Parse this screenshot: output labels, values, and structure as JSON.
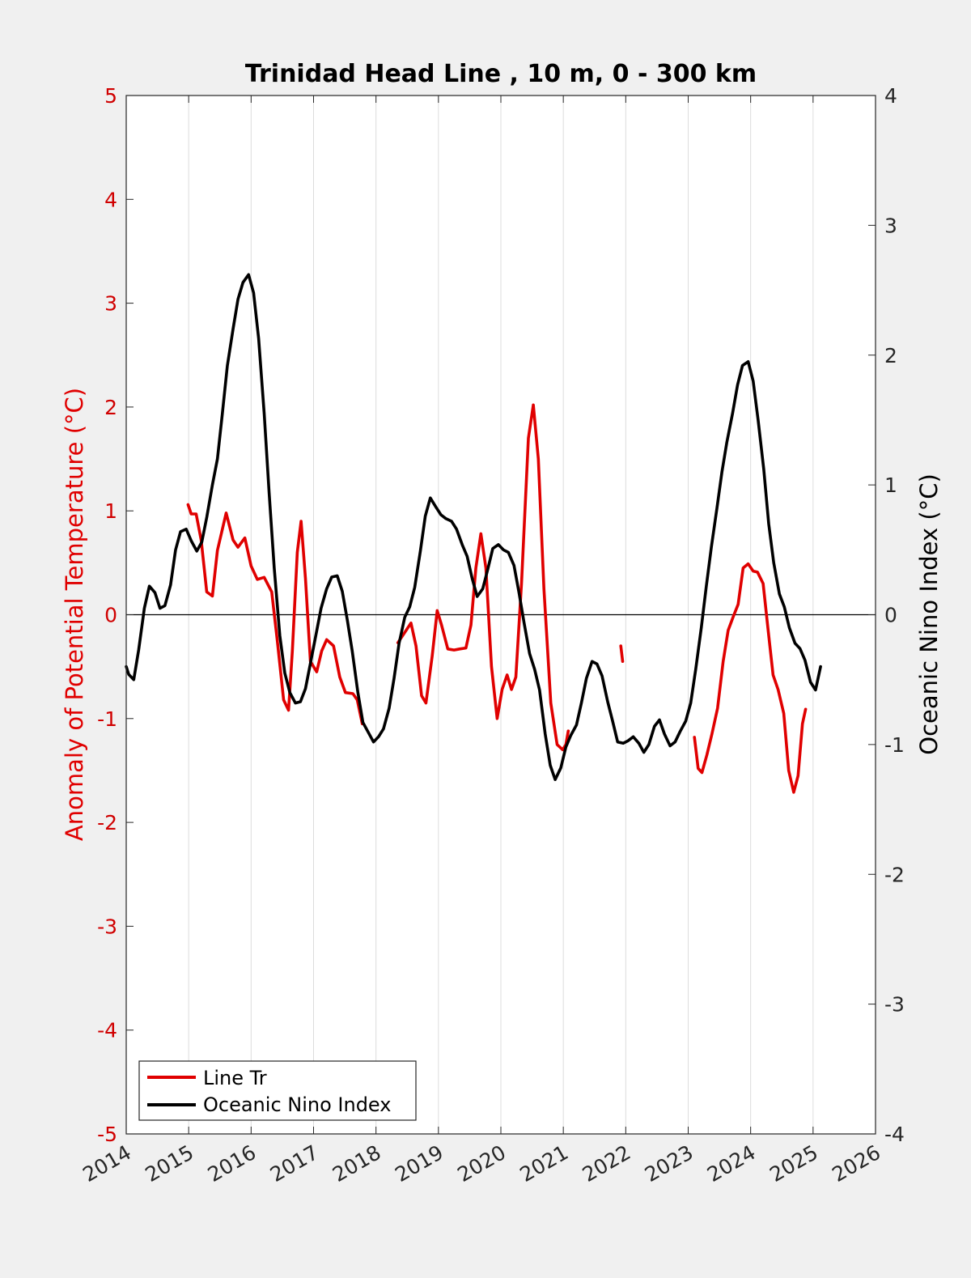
{
  "chart_data": {
    "type": "line",
    "title": "Trinidad Head Line , 10 m, 0 - 300 km",
    "ylabel_left": "Anomaly of Potential Temperature (°C)",
    "ylabel_right": "Oceanic Nino Index (°C)",
    "xlim": [
      2014,
      2026
    ],
    "ylim_left": [
      -5,
      5
    ],
    "ylim_right": [
      -4,
      4
    ],
    "x_ticks": [
      "2014",
      "2015",
      "2016",
      "2017",
      "2018",
      "2019",
      "2020",
      "2021",
      "2022",
      "2023",
      "2024",
      "2025",
      "2026"
    ],
    "y_ticks_left": [
      "5",
      "4",
      "3",
      "2",
      "1",
      "0",
      "-1",
      "-2",
      "-3",
      "-4",
      "-5"
    ],
    "y_ticks_right": [
      "4",
      "3",
      "2",
      "1",
      "0",
      "-1",
      "-2",
      "-3",
      "-4"
    ],
    "grid": "vertical lines at years",
    "legend_position": "bottom-left",
    "colors": {
      "line_tr": "#e00000",
      "oni": "#000000",
      "left_axis_text": "#d00000"
    },
    "series": [
      {
        "name": "Line Tr",
        "axis": "left",
        "color": "#e00000",
        "segments": [
          [
            [
              2014.99,
              1.06
            ],
            [
              2015.04,
              0.97
            ],
            [
              2015.12,
              0.97
            ],
            [
              2015.2,
              0.72
            ],
            [
              2015.29,
              0.22
            ],
            [
              2015.38,
              0.18
            ],
            [
              2015.46,
              0.62
            ],
            [
              2015.6,
              0.98
            ],
            [
              2015.71,
              0.72
            ],
            [
              2015.79,
              0.65
            ],
            [
              2015.9,
              0.74
            ],
            [
              2016.0,
              0.47
            ],
            [
              2016.1,
              0.34
            ],
            [
              2016.21,
              0.36
            ],
            [
              2016.33,
              0.22
            ],
            [
              2016.42,
              -0.25
            ],
            [
              2016.52,
              -0.82
            ],
            [
              2016.6,
              -0.92
            ],
            [
              2016.66,
              -0.35
            ],
            [
              2016.74,
              0.6
            ],
            [
              2016.8,
              0.9
            ],
            [
              2016.87,
              0.35
            ],
            [
              2016.95,
              -0.45
            ],
            [
              2017.05,
              -0.55
            ],
            [
              2017.13,
              -0.35
            ],
            [
              2017.21,
              -0.24
            ],
            [
              2017.32,
              -0.3
            ],
            [
              2017.42,
              -0.6
            ],
            [
              2017.51,
              -0.75
            ],
            [
              2017.63,
              -0.76
            ],
            [
              2017.7,
              -0.82
            ],
            [
              2017.78,
              -1.05
            ]
          ],
          [
            [
              2018.35,
              -0.27
            ],
            [
              2018.45,
              -0.18
            ],
            [
              2018.56,
              -0.08
            ],
            [
              2018.64,
              -0.3
            ],
            [
              2018.73,
              -0.78
            ],
            [
              2018.8,
              -0.85
            ],
            [
              2018.9,
              -0.4
            ],
            [
              2018.98,
              0.04
            ],
            [
              2019.05,
              -0.1
            ],
            [
              2019.15,
              -0.33
            ],
            [
              2019.25,
              -0.34
            ],
            [
              2019.34,
              -0.33
            ],
            [
              2019.44,
              -0.32
            ],
            [
              2019.52,
              -0.1
            ],
            [
              2019.6,
              0.45
            ],
            [
              2019.68,
              0.78
            ],
            [
              2019.76,
              0.45
            ],
            [
              2019.85,
              -0.5
            ],
            [
              2019.94,
              -1.0
            ],
            [
              2020.02,
              -0.72
            ],
            [
              2020.1,
              -0.58
            ],
            [
              2020.17,
              -0.72
            ],
            [
              2020.24,
              -0.6
            ],
            [
              2020.33,
              0.3
            ],
            [
              2020.44,
              1.7
            ],
            [
              2020.52,
              2.02
            ],
            [
              2020.6,
              1.5
            ],
            [
              2020.69,
              0.25
            ],
            [
              2020.8,
              -0.85
            ],
            [
              2020.9,
              -1.25
            ],
            [
              2020.99,
              -1.3
            ],
            [
              2021.04,
              -1.25
            ],
            [
              2021.08,
              -1.12
            ]
          ],
          [
            [
              2021.92,
              -0.3
            ],
            [
              2021.95,
              -0.45
            ]
          ],
          [
            [
              2023.1,
              -1.18
            ],
            [
              2023.16,
              -1.48
            ],
            [
              2023.22,
              -1.52
            ],
            [
              2023.3,
              -1.35
            ],
            [
              2023.38,
              -1.15
            ],
            [
              2023.47,
              -0.9
            ],
            [
              2023.56,
              -0.45
            ],
            [
              2023.64,
              -0.15
            ],
            [
              2023.72,
              -0.02
            ],
            [
              2023.8,
              0.1
            ],
            [
              2023.88,
              0.45
            ],
            [
              2023.96,
              0.49
            ],
            [
              2024.04,
              0.42
            ],
            [
              2024.11,
              0.41
            ],
            [
              2024.2,
              0.3
            ],
            [
              2024.28,
              -0.15
            ],
            [
              2024.36,
              -0.58
            ],
            [
              2024.44,
              -0.72
            ],
            [
              2024.53,
              -0.95
            ],
            [
              2024.61,
              -1.5
            ],
            [
              2024.69,
              -1.71
            ],
            [
              2024.76,
              -1.55
            ],
            [
              2024.83,
              -1.05
            ],
            [
              2024.88,
              -0.91
            ]
          ]
        ]
      },
      {
        "name": "Oceanic Nino Index",
        "axis": "right",
        "color": "#000000",
        "segments": [
          [
            [
              2014.0,
              -0.4
            ],
            [
              2014.04,
              -0.46
            ],
            [
              2014.12,
              -0.5
            ],
            [
              2014.2,
              -0.27
            ],
            [
              2014.29,
              0.05
            ],
            [
              2014.37,
              0.22
            ],
            [
              2014.46,
              0.17
            ],
            [
              2014.54,
              0.05
            ],
            [
              2014.62,
              0.07
            ],
            [
              2014.71,
              0.23
            ],
            [
              2014.79,
              0.5
            ],
            [
              2014.87,
              0.64
            ],
            [
              2014.96,
              0.66
            ],
            [
              2015.04,
              0.57
            ],
            [
              2015.13,
              0.49
            ],
            [
              2015.21,
              0.56
            ],
            [
              2015.29,
              0.75
            ],
            [
              2015.38,
              1.0
            ],
            [
              2015.46,
              1.2
            ],
            [
              2015.54,
              1.55
            ],
            [
              2015.62,
              1.92
            ],
            [
              2015.71,
              2.2
            ],
            [
              2015.79,
              2.43
            ],
            [
              2015.87,
              2.56
            ],
            [
              2015.96,
              2.62
            ],
            [
              2016.04,
              2.48
            ],
            [
              2016.12,
              2.13
            ],
            [
              2016.21,
              1.55
            ],
            [
              2016.29,
              0.93
            ],
            [
              2016.37,
              0.36
            ],
            [
              2016.46,
              -0.16
            ],
            [
              2016.54,
              -0.45
            ],
            [
              2016.62,
              -0.6
            ],
            [
              2016.71,
              -0.68
            ],
            [
              2016.79,
              -0.67
            ],
            [
              2016.87,
              -0.57
            ],
            [
              2016.96,
              -0.35
            ],
            [
              2017.04,
              -0.15
            ],
            [
              2017.12,
              0.05
            ],
            [
              2017.21,
              0.2
            ],
            [
              2017.29,
              0.29
            ],
            [
              2017.38,
              0.3
            ],
            [
              2017.46,
              0.18
            ],
            [
              2017.54,
              -0.04
            ],
            [
              2017.62,
              -0.28
            ],
            [
              2017.71,
              -0.6
            ],
            [
              2017.79,
              -0.83
            ],
            [
              2017.87,
              -0.9
            ],
            [
              2017.96,
              -0.98
            ],
            [
              2018.04,
              -0.94
            ],
            [
              2018.12,
              -0.88
            ],
            [
              2018.21,
              -0.72
            ],
            [
              2018.29,
              -0.49
            ],
            [
              2018.37,
              -0.22
            ],
            [
              2018.46,
              -0.02
            ],
            [
              2018.54,
              0.06
            ],
            [
              2018.62,
              0.21
            ],
            [
              2018.71,
              0.49
            ],
            [
              2018.79,
              0.76
            ],
            [
              2018.87,
              0.9
            ],
            [
              2018.96,
              0.83
            ],
            [
              2019.04,
              0.77
            ],
            [
              2019.12,
              0.74
            ],
            [
              2019.21,
              0.72
            ],
            [
              2019.29,
              0.66
            ],
            [
              2019.38,
              0.54
            ],
            [
              2019.46,
              0.45
            ],
            [
              2019.54,
              0.28
            ],
            [
              2019.62,
              0.14
            ],
            [
              2019.71,
              0.2
            ],
            [
              2019.79,
              0.35
            ],
            [
              2019.87,
              0.51
            ],
            [
              2019.96,
              0.54
            ],
            [
              2020.04,
              0.5
            ],
            [
              2020.12,
              0.48
            ],
            [
              2020.21,
              0.38
            ],
            [
              2020.29,
              0.17
            ],
            [
              2020.37,
              -0.06
            ],
            [
              2020.46,
              -0.3
            ],
            [
              2020.54,
              -0.42
            ],
            [
              2020.62,
              -0.58
            ],
            [
              2020.71,
              -0.92
            ],
            [
              2020.79,
              -1.16
            ],
            [
              2020.87,
              -1.27
            ],
            [
              2020.96,
              -1.18
            ],
            [
              2021.04,
              -1.02
            ],
            [
              2021.12,
              -0.93
            ],
            [
              2021.21,
              -0.85
            ],
            [
              2021.29,
              -0.68
            ],
            [
              2021.37,
              -0.49
            ],
            [
              2021.46,
              -0.36
            ],
            [
              2021.54,
              -0.38
            ],
            [
              2021.62,
              -0.47
            ],
            [
              2021.71,
              -0.67
            ],
            [
              2021.79,
              -0.82
            ],
            [
              2021.87,
              -0.98
            ],
            [
              2021.96,
              -0.99
            ],
            [
              2022.04,
              -0.97
            ],
            [
              2022.12,
              -0.94
            ],
            [
              2022.21,
              -0.99
            ],
            [
              2022.29,
              -1.06
            ],
            [
              2022.37,
              -1.0
            ],
            [
              2022.46,
              -0.86
            ],
            [
              2022.54,
              -0.81
            ],
            [
              2022.62,
              -0.92
            ],
            [
              2022.71,
              -1.01
            ],
            [
              2022.79,
              -0.98
            ],
            [
              2022.87,
              -0.9
            ],
            [
              2022.96,
              -0.82
            ],
            [
              2023.04,
              -0.68
            ],
            [
              2023.12,
              -0.42
            ],
            [
              2023.21,
              -0.1
            ],
            [
              2023.29,
              0.22
            ],
            [
              2023.37,
              0.52
            ],
            [
              2023.46,
              0.82
            ],
            [
              2023.54,
              1.1
            ],
            [
              2023.62,
              1.33
            ],
            [
              2023.71,
              1.55
            ],
            [
              2023.79,
              1.77
            ],
            [
              2023.87,
              1.92
            ],
            [
              2023.96,
              1.95
            ],
            [
              2024.04,
              1.8
            ],
            [
              2024.12,
              1.5
            ],
            [
              2024.21,
              1.12
            ],
            [
              2024.29,
              0.7
            ],
            [
              2024.37,
              0.4
            ],
            [
              2024.46,
              0.16
            ],
            [
              2024.54,
              0.06
            ],
            [
              2024.62,
              -0.1
            ],
            [
              2024.71,
              -0.22
            ],
            [
              2024.79,
              -0.26
            ],
            [
              2024.87,
              -0.35
            ],
            [
              2024.96,
              -0.52
            ],
            [
              2025.04,
              -0.58
            ],
            [
              2025.12,
              -0.4
            ]
          ]
        ]
      }
    ]
  },
  "legend": {
    "items": [
      {
        "label": "Line Tr",
        "color": "#e00000"
      },
      {
        "label": "Oceanic Nino Index",
        "color": "#000000"
      }
    ]
  }
}
